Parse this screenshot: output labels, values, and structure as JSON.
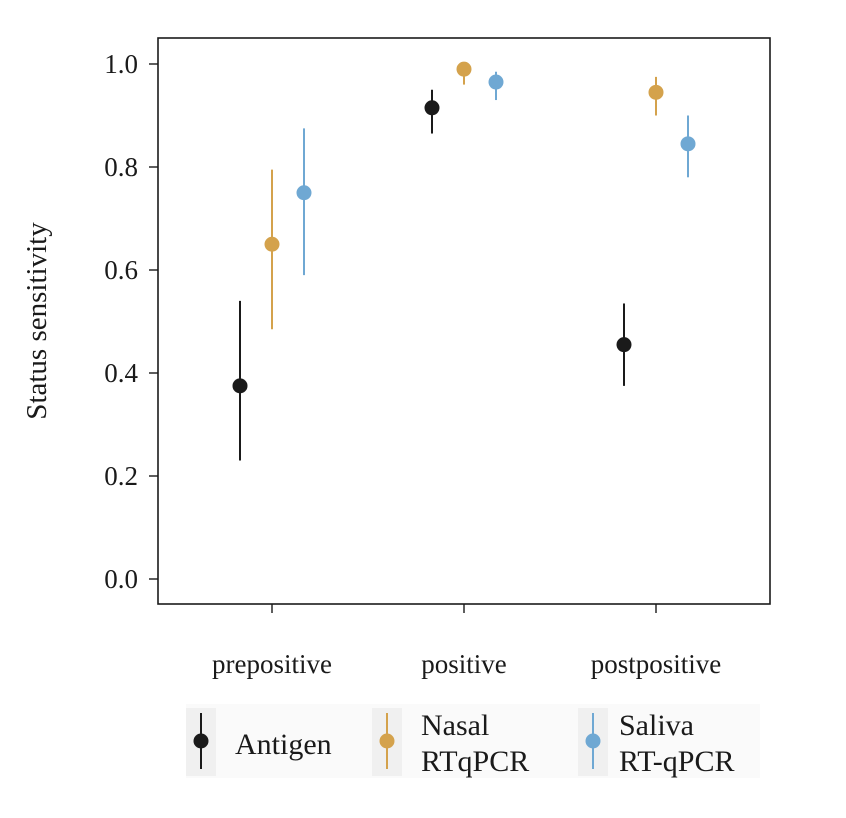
{
  "chart_data": {
    "type": "scatter",
    "subtype": "point-with-error-bars",
    "ylabel": "Status sensitivity",
    "xlabel": "",
    "categories": [
      "prepositive",
      "positive",
      "postpositive"
    ],
    "ylim": [
      -0.05,
      1.05
    ],
    "yticks": [
      "0.0",
      "0.2",
      "0.4",
      "0.6",
      "0.8",
      "1.0"
    ],
    "grid": false,
    "legend_position": "bottom",
    "series": [
      {
        "name": "Antigen",
        "color": "#1a1a1a",
        "points": [
          {
            "category": "prepositive",
            "value": 0.375,
            "low": 0.23,
            "high": 0.54
          },
          {
            "category": "positive",
            "value": 0.915,
            "low": 0.865,
            "high": 0.95
          },
          {
            "category": "postpositive",
            "value": 0.455,
            "low": 0.375,
            "high": 0.535
          }
        ]
      },
      {
        "name": "Nasal\nRTqPCR",
        "color": "#d4a24c",
        "points": [
          {
            "category": "prepositive",
            "value": 0.65,
            "low": 0.485,
            "high": 0.795
          },
          {
            "category": "positive",
            "value": 0.99,
            "low": 0.96,
            "high": 1.0
          },
          {
            "category": "postpositive",
            "value": 0.945,
            "low": 0.9,
            "high": 0.975
          }
        ]
      },
      {
        "name": "Saliva\nRT-qPCR",
        "color": "#6fa8d3",
        "points": [
          {
            "category": "prepositive",
            "value": 0.75,
            "low": 0.59,
            "high": 0.875
          },
          {
            "category": "positive",
            "value": 0.965,
            "low": 0.93,
            "high": 0.985
          },
          {
            "category": "postpositive",
            "value": 0.845,
            "low": 0.78,
            "high": 0.9
          }
        ]
      }
    ]
  }
}
